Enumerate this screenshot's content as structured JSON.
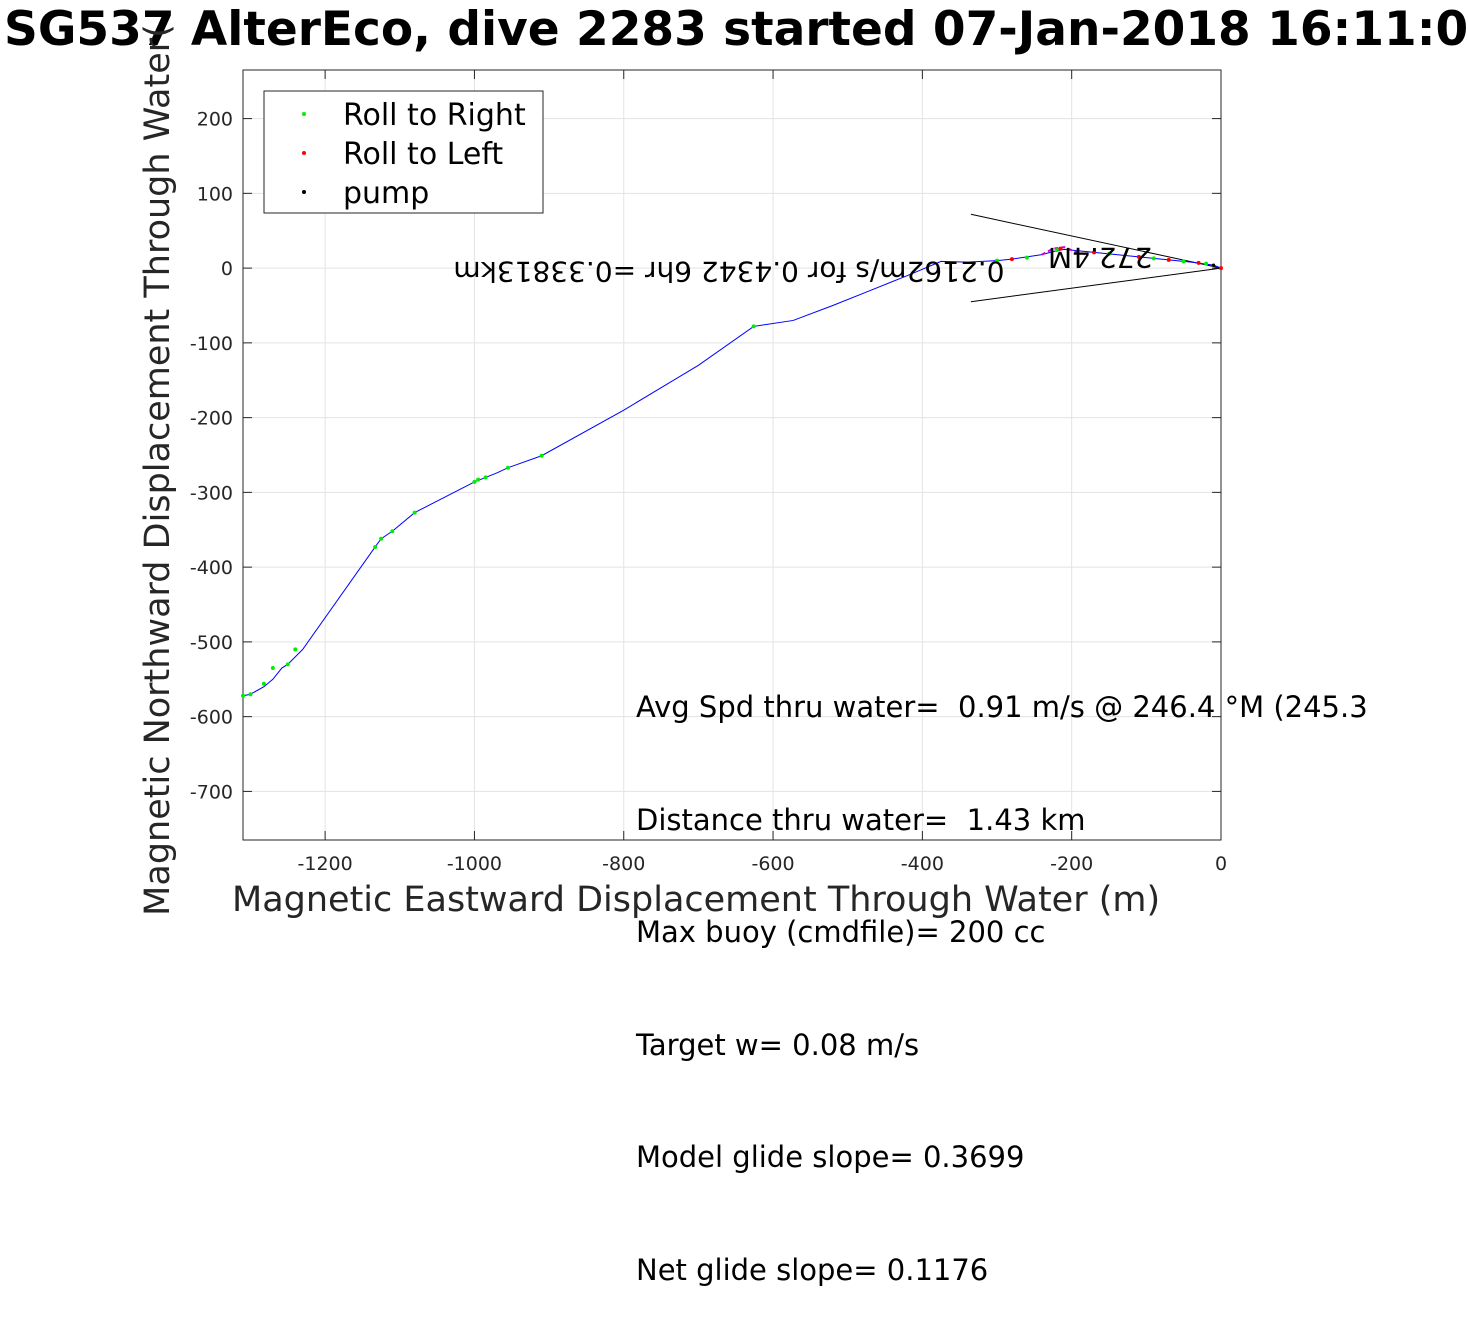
{
  "chart_data": {
    "type": "line",
    "title": "SG537 AlterEco, dive 2283 started 07-Jan-2018 16:11:0",
    "xlabel": "Magnetic Eastward Displacement Through Water (m)",
    "ylabel": "Magnetic Northward Displacement Through Water(",
    "xlim": [
      -1310,
      0
    ],
    "ylim": [
      -765,
      265
    ],
    "xticks": [
      -1200,
      -1000,
      -800,
      -600,
      -400,
      -200,
      0
    ],
    "yticks": [
      200,
      100,
      0,
      -100,
      -200,
      -300,
      -400,
      -500,
      -600,
      -700
    ],
    "grid": true,
    "legend": {
      "position": "top-left",
      "entries": [
        {
          "label": "Roll to Right",
          "color": "#00ee00"
        },
        {
          "label": "Roll to Left",
          "color": "#ff0000"
        },
        {
          "label": "pump",
          "color": "#000000"
        }
      ]
    },
    "track": {
      "color": "#0000ff",
      "x": [
        0,
        -10,
        -25,
        -40,
        -60,
        -80,
        -100,
        -120,
        -140,
        -160,
        -180,
        -200,
        -210,
        -225,
        -240,
        -260,
        -280,
        -300,
        -320,
        -340,
        -375,
        -420,
        -470,
        -520,
        -573,
        -626,
        -700,
        -800,
        -910,
        -955,
        -970,
        -985,
        -1000,
        -1080,
        -1110,
        -1125,
        -1133,
        -1230,
        -1240,
        -1250,
        -1258,
        -1270,
        -1282,
        -1300,
        -1310
      ],
      "y": [
        0,
        4,
        6,
        8,
        10,
        12,
        14,
        16,
        18,
        20,
        22,
        24,
        25,
        22,
        18,
        15,
        12,
        10,
        9,
        8,
        9,
        -10,
        -30,
        -50,
        -70,
        -78,
        -130,
        -190,
        -251,
        -267,
        -274,
        -280,
        -286,
        -327,
        -352,
        -362,
        -373,
        -510,
        -520,
        -530,
        -535,
        -550,
        -560,
        -570,
        -572
      ]
    },
    "roll_right_points": {
      "x": [
        -20,
        -50,
        -90,
        -150,
        -220,
        -260,
        -300,
        -626,
        -910,
        -955,
        -985,
        -995,
        -1000,
        -1080,
        -1110,
        -1125,
        -1133,
        -1240,
        -1250,
        -1270,
        -1282,
        -1300,
        -1310
      ],
      "y": [
        6,
        9,
        13,
        19,
        24,
        14,
        10,
        -78,
        -251,
        -267,
        -280,
        -283,
        -286,
        -327,
        -352,
        -362,
        -373,
        -510,
        -530,
        -535,
        -556,
        -570,
        -572
      ]
    },
    "roll_left_points": {
      "x": [
        0,
        -30,
        -70,
        -110,
        -170,
        -215,
        -280
      ],
      "y": [
        0,
        7,
        11,
        15,
        21,
        26,
        12
      ]
    },
    "pump_points": {
      "x": [
        -10
      ],
      "y": [
        4
      ]
    },
    "mirrored_annotations": [
      "0.2162m/s for 0.4342 6hr =0.33813km",
      "272.4M"
    ],
    "annotation_lines": [
      "Avg Spd thru water=  0.91 m/s @ 246.4 °M (245.3",
      "Distance thru water=  1.43 km",
      "Max buoy (cmdfile)= 200 cc",
      "Target w= 0.08 m/s",
      "Model glide slope= 0.3699",
      "Net glide slope= 0.1176"
    ]
  }
}
